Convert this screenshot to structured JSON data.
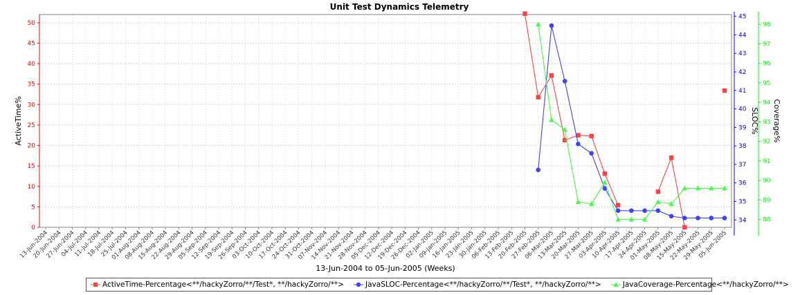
{
  "chart_data": {
    "type": "line",
    "title": "Unit Test Dynamics Telemetry",
    "xlabel": "13-Jun-2004 to 05-Jun-2005 (Weeks)",
    "categories": [
      "13-Jun-2004",
      "20-Jun-2004",
      "27-Jun-2004",
      "04-Jul-2004",
      "11-Jul-2004",
      "18-Jul-2004",
      "25-Jul-2004",
      "01-Aug-2004",
      "08-Aug-2004",
      "15-Aug-2004",
      "22-Aug-2004",
      "29-Aug-2004",
      "05-Sep-2004",
      "12-Sep-2004",
      "19-Sep-2004",
      "26-Sep-2004",
      "03-Oct-2004",
      "10-Oct-2004",
      "17-Oct-2004",
      "24-Oct-2004",
      "31-Oct-2004",
      "07-Nov-2004",
      "14-Nov-2004",
      "21-Nov-2004",
      "28-Nov-2004",
      "05-Dec-2004",
      "12-Dec-2004",
      "19-Dec-2004",
      "26-Dec-2004",
      "02-Jan-2005",
      "09-Jan-2005",
      "16-Jan-2005",
      "23-Jan-2005",
      "30-Jan-2005",
      "06-Feb-2005",
      "13-Feb-2005",
      "20-Feb-2005",
      "27-Feb-2005",
      "06-Mar-2005",
      "13-Mar-2005",
      "20-Mar-2005",
      "27-Mar-2005",
      "03-Apr-2005",
      "10-Apr-2005",
      "17-Apr-2005",
      "24-Apr-2005",
      "01-May-2005",
      "08-May-2005",
      "15-May-2005",
      "22-May-2005",
      "29-May-2005",
      "05-Jun-2005"
    ],
    "axes": [
      {
        "id": "left",
        "label": "ActiveTime%",
        "color": "#ff0000",
        "ylim": [
          0,
          52
        ],
        "ticks": [
          0,
          5,
          10,
          15,
          20,
          25,
          30,
          35,
          40,
          45,
          50
        ]
      },
      {
        "id": "right1",
        "label": "SLOC%",
        "color": "#0000ff",
        "ylim": [
          33.6,
          45.1
        ],
        "ticks": [
          34,
          35,
          36,
          37,
          38,
          39,
          40,
          41,
          42,
          43,
          44,
          45
        ]
      },
      {
        "id": "right2",
        "label": "Coverage%",
        "color": "#00ff00",
        "ylim": [
          87.6,
          98.5
        ],
        "ticks": [
          88,
          89,
          90,
          91,
          92,
          93,
          94,
          95,
          96,
          97,
          98
        ]
      }
    ],
    "series": [
      {
        "name": "ActiveTime-Percentage<**/hackyZorro/**/Test*, **/hackyZorro/**>",
        "axis": "left",
        "color": "#ff4040",
        "marker": "square",
        "values": [
          null,
          null,
          null,
          null,
          null,
          null,
          null,
          null,
          null,
          null,
          null,
          null,
          null,
          null,
          null,
          null,
          null,
          null,
          null,
          null,
          null,
          null,
          null,
          null,
          null,
          null,
          null,
          null,
          null,
          null,
          null,
          null,
          null,
          null,
          null,
          null,
          52.2,
          31.8,
          37.1,
          21.3,
          22.5,
          22.3,
          13.1,
          5.4,
          null,
          null,
          8.7,
          17.0,
          0.0,
          null,
          null,
          33.4
        ]
      },
      {
        "name": "JavaSLOC-Percentage<**/hackyZorro/**/Test*, **/hackyZorro/**>",
        "axis": "right1",
        "color": "#4040ff",
        "marker": "circle",
        "values": [
          null,
          null,
          null,
          null,
          null,
          null,
          null,
          null,
          null,
          null,
          null,
          null,
          null,
          null,
          null,
          null,
          null,
          null,
          null,
          null,
          null,
          null,
          null,
          null,
          null,
          null,
          null,
          null,
          null,
          null,
          null,
          null,
          null,
          null,
          null,
          null,
          null,
          36.7,
          44.5,
          41.5,
          38.1,
          37.6,
          35.7,
          34.5,
          34.5,
          34.5,
          34.5,
          34.2,
          34.1,
          34.1,
          34.1,
          34.1
        ]
      },
      {
        "name": "JavaCoverage-Percentage<**/hackyZorro/**>",
        "axis": "right2",
        "color": "#40ff40",
        "marker": "triangle",
        "values": [
          null,
          null,
          null,
          null,
          null,
          null,
          null,
          null,
          null,
          null,
          null,
          null,
          null,
          null,
          null,
          null,
          null,
          null,
          null,
          null,
          null,
          null,
          null,
          null,
          null,
          null,
          null,
          null,
          null,
          null,
          null,
          null,
          null,
          null,
          null,
          null,
          null,
          98.0,
          93.1,
          92.6,
          88.9,
          88.8,
          89.9,
          88.0,
          88.0,
          88.0,
          88.9,
          88.8,
          89.6,
          89.6,
          89.6,
          89.6
        ]
      }
    ],
    "grid": true,
    "legend": "bottom"
  }
}
